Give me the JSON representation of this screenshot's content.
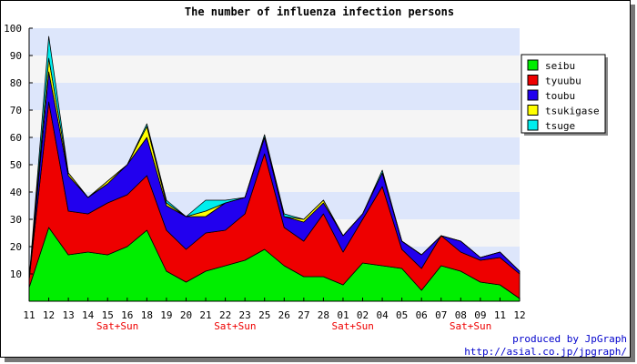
{
  "chart_data": {
    "type": "area",
    "stacked": true,
    "title": "The number of influenza infection persons",
    "xlabel": "",
    "ylabel": "",
    "ylim": [
      0,
      100
    ],
    "yticks": [
      10,
      20,
      30,
      40,
      50,
      60,
      70,
      80,
      90,
      100
    ],
    "grid": true,
    "band_colors": [
      "#f5f5f5",
      "#dde6fb"
    ],
    "legend_position": "top-right",
    "categories": [
      "11",
      "12",
      "13",
      "14",
      "15",
      "16",
      "18",
      "19",
      "20",
      "21",
      "22",
      "23",
      "25",
      "26",
      "27",
      "28",
      "01",
      "02",
      "04",
      "05",
      "06",
      "07",
      "08",
      "09",
      "11",
      "12"
    ],
    "series": [
      {
        "name": "seibu",
        "color": "#00ee00",
        "values": [
          5,
          27,
          17,
          18,
          17,
          20,
          26,
          11,
          7,
          11,
          13,
          15,
          19,
          13,
          9,
          9,
          6,
          14,
          13,
          12,
          4,
          13,
          11,
          7,
          6,
          1
        ]
      },
      {
        "name": "tyuubu",
        "color": "#ee0000",
        "values": [
          3,
          46,
          16,
          14,
          19,
          19,
          20,
          15,
          12,
          14,
          13,
          17,
          35,
          14,
          13,
          23,
          12,
          16,
          29,
          7,
          8,
          11,
          7,
          8,
          10,
          9
        ]
      },
      {
        "name": "toubu",
        "color": "#2200ee",
        "values": [
          0,
          11,
          13,
          6,
          7,
          11,
          14,
          9,
          12,
          6,
          10,
          6,
          6,
          4,
          7,
          4,
          6,
          2,
          5,
          3,
          5,
          0,
          4,
          1,
          2,
          1
        ]
      },
      {
        "name": "tsukigase",
        "color": "#ffff00",
        "values": [
          0,
          5,
          1,
          0,
          1,
          0,
          4,
          1,
          0,
          2,
          0,
          0,
          0,
          0,
          1,
          1,
          0,
          0,
          0,
          0,
          0,
          0,
          0,
          0,
          0,
          0
        ]
      },
      {
        "name": "tsuge",
        "color": "#00eeee",
        "values": [
          0,
          8,
          0,
          0,
          0,
          0,
          1,
          1,
          0,
          4,
          1,
          0,
          1,
          1,
          0,
          0,
          0,
          0,
          1,
          0,
          0,
          0,
          0,
          0,
          0,
          0
        ]
      }
    ],
    "weekend_labels": [
      {
        "text": "Sat+Sun",
        "after_index": 4
      },
      {
        "text": "Sat+Sun",
        "after_index": 10
      },
      {
        "text": "Sat+Sun",
        "after_index": 16
      },
      {
        "text": "Sat+Sun",
        "after_index": 22
      }
    ],
    "weekend_color": "#ee0000"
  },
  "credits": {
    "line1": "produced by JpGraph",
    "line2": "http://asial.co.jp/jpgraph/",
    "color": "#0000cc"
  }
}
